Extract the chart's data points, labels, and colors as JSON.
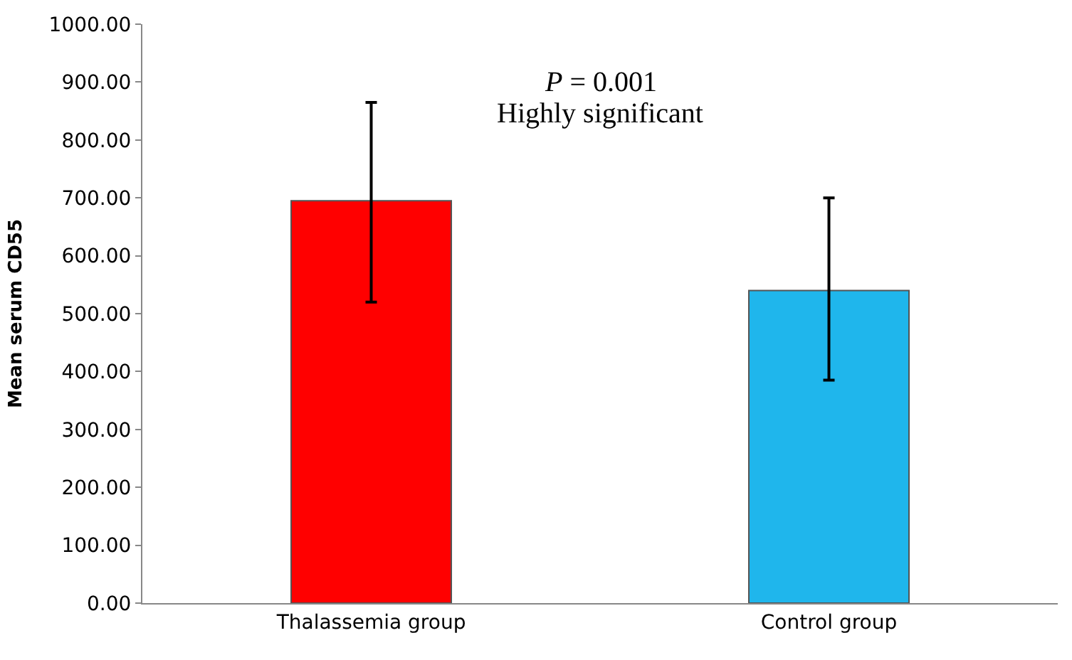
{
  "chart_data": {
    "type": "bar",
    "ylabel": "Mean serum CD55",
    "categories": [
      "Thalassemia group",
      "Control group"
    ],
    "values": [
      695,
      540
    ],
    "colors": [
      "#ff0000",
      "#1fb6ec"
    ],
    "errors": [
      [
        520,
        865
      ],
      [
        385,
        700
      ]
    ],
    "ylim": [
      0,
      1000
    ],
    "yticks": [
      {
        "value": 0,
        "label": "0.00"
      },
      {
        "value": 100,
        "label": "100.00"
      },
      {
        "value": 200,
        "label": "200.00"
      },
      {
        "value": 300,
        "label": "300.00"
      },
      {
        "value": 400,
        "label": "400.00"
      },
      {
        "value": 500,
        "label": "500.00"
      },
      {
        "value": 600,
        "label": "600.00"
      },
      {
        "value": 700,
        "label": "700.00"
      },
      {
        "value": 800,
        "label": "800.00"
      },
      {
        "value": 900,
        "label": "900.00"
      },
      {
        "value": 1000,
        "label": "1000.00"
      }
    ],
    "annotations": [
      "P = 0.001",
      "Highly significant"
    ]
  }
}
